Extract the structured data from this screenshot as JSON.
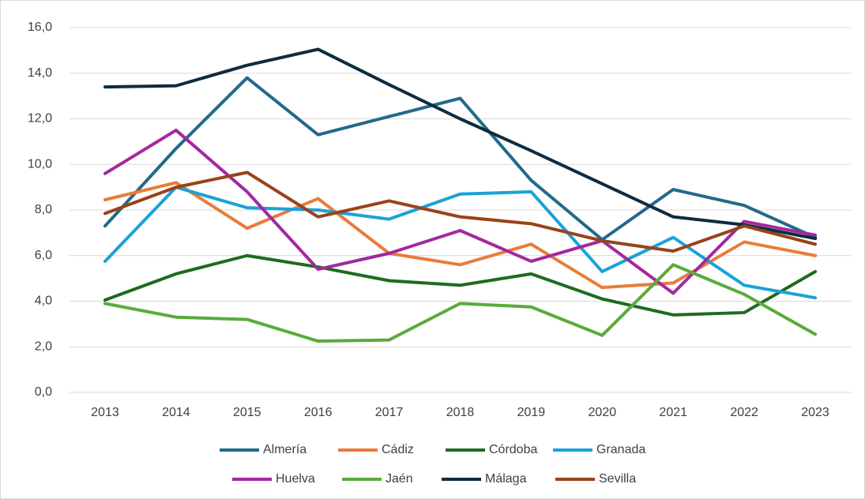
{
  "chart_data": {
    "type": "line",
    "categories": [
      "2013",
      "2014",
      "2015",
      "2016",
      "2017",
      "2018",
      "2019",
      "2020",
      "2021",
      "2022",
      "2023"
    ],
    "series": [
      {
        "name": "Almería",
        "color": "#23698c",
        "values": [
          7.3,
          10.7,
          13.8,
          11.3,
          12.1,
          12.9,
          9.3,
          6.7,
          8.9,
          8.2,
          6.8
        ]
      },
      {
        "name": "Cádiz",
        "color": "#e97c3a",
        "values": [
          8.45,
          9.2,
          7.2,
          8.5,
          6.1,
          5.6,
          6.5,
          4.6,
          4.8,
          6.6,
          6.0
        ]
      },
      {
        "name": "Córdoba",
        "color": "#1f6b20",
        "values": [
          4.05,
          5.2,
          6.0,
          5.5,
          4.9,
          4.7,
          5.2,
          4.1,
          3.4,
          3.5,
          5.3
        ]
      },
      {
        "name": "Granada",
        "color": "#1aa2d8",
        "values": [
          5.75,
          9.0,
          8.1,
          8.0,
          7.6,
          8.7,
          8.8,
          5.3,
          6.8,
          4.7,
          4.15
        ]
      },
      {
        "name": "Huelva",
        "color": "#a3289f",
        "values": [
          9.6,
          11.5,
          8.8,
          5.4,
          6.1,
          7.1,
          5.75,
          6.65,
          4.35,
          7.5,
          6.9
        ]
      },
      {
        "name": "Jaén",
        "color": "#5aab3c",
        "values": [
          3.9,
          3.3,
          3.2,
          2.25,
          2.3,
          3.9,
          3.75,
          2.5,
          5.6,
          4.3,
          2.55
        ]
      },
      {
        "name": "Málaga",
        "color": "#0e2c40",
        "values": [
          13.4,
          13.45,
          14.35,
          15.05,
          13.5,
          12.0,
          10.6,
          9.15,
          7.7,
          7.35,
          6.75
        ]
      },
      {
        "name": "Sevilla",
        "color": "#98431a",
        "values": [
          7.85,
          9.0,
          9.65,
          7.7,
          8.4,
          7.7,
          7.4,
          6.65,
          6.2,
          7.3,
          6.5
        ]
      }
    ],
    "ylim": [
      0,
      16
    ],
    "yticks": [
      {
        "value": 0,
        "label": "0,0"
      },
      {
        "value": 2,
        "label": "2,0"
      },
      {
        "value": 4,
        "label": "4,0"
      },
      {
        "value": 6,
        "label": "6,0"
      },
      {
        "value": 8,
        "label": "8,0"
      },
      {
        "value": 10,
        "label": "10,0"
      },
      {
        "value": 12,
        "label": "12,0"
      },
      {
        "value": 14,
        "label": "14,0"
      },
      {
        "value": 16,
        "label": "16,0"
      }
    ],
    "grid": true,
    "legend": "bottom"
  }
}
